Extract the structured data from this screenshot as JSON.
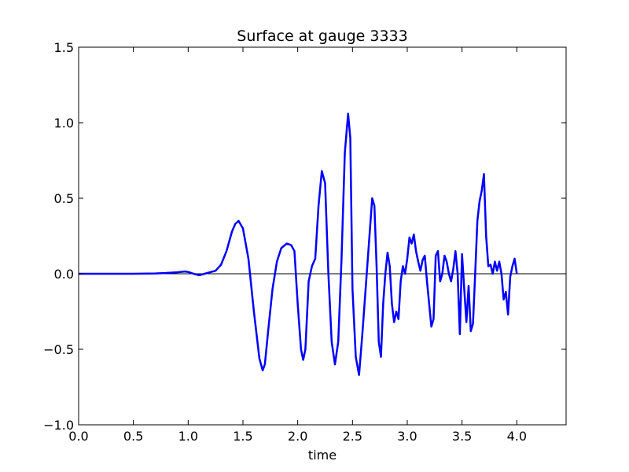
{
  "chart_data": {
    "type": "line",
    "title": "Surface at gauge 3333",
    "xlabel": "time",
    "ylabel": "",
    "xlim": [
      0.0,
      4.45
    ],
    "ylim": [
      -1.0,
      1.5
    ],
    "xticks": [
      "0.0",
      "0.5",
      "1.0",
      "1.5",
      "2.0",
      "2.5",
      "3.0",
      "3.5",
      "4.0"
    ],
    "yticks": [
      "−1.0",
      "−0.5",
      "0.0",
      "0.5",
      "1.0",
      "1.5"
    ],
    "reference_line_y": 0.0,
    "grid": false,
    "legend": "none",
    "line_color": "#0000ff",
    "reference_line_color": "#000000",
    "series": [
      {
        "x": [
          0.0,
          0.5,
          0.7,
          0.8,
          0.9,
          0.97,
          1.0,
          1.05,
          1.1,
          1.15,
          1.2,
          1.25,
          1.3,
          1.35,
          1.4,
          1.43,
          1.46,
          1.5,
          1.55,
          1.6,
          1.65,
          1.68,
          1.7,
          1.73,
          1.77,
          1.81,
          1.85,
          1.9,
          1.94,
          1.97,
          2.0,
          2.03,
          2.05,
          2.07,
          2.1,
          2.13,
          2.16,
          2.19,
          2.22,
          2.25,
          2.28,
          2.31,
          2.34,
          2.37,
          2.4,
          2.43,
          2.46,
          2.48,
          2.5,
          2.53,
          2.56,
          2.59,
          2.62,
          2.65,
          2.68,
          2.7,
          2.72,
          2.74,
          2.76,
          2.78,
          2.8,
          2.82,
          2.84,
          2.86,
          2.88,
          2.9,
          2.92,
          2.94,
          2.96,
          2.98,
          3.0,
          3.02,
          3.04,
          3.06,
          3.08,
          3.1,
          3.12,
          3.14,
          3.16,
          3.18,
          3.2,
          3.22,
          3.24,
          3.26,
          3.28,
          3.3,
          3.32,
          3.34,
          3.36,
          3.38,
          3.4,
          3.42,
          3.44,
          3.46,
          3.48,
          3.5,
          3.52,
          3.54,
          3.56,
          3.58,
          3.6,
          3.62,
          3.64,
          3.66,
          3.68,
          3.7,
          3.72,
          3.74,
          3.76,
          3.78,
          3.8,
          3.82,
          3.84,
          3.86,
          3.88,
          3.9,
          3.92,
          3.94,
          3.96,
          3.98,
          4.0
        ],
        "y": [
          0.0,
          0.0,
          0.002,
          0.005,
          0.01,
          0.015,
          0.012,
          0.0,
          -0.01,
          0.0,
          0.01,
          0.02,
          0.06,
          0.15,
          0.28,
          0.33,
          0.35,
          0.3,
          0.1,
          -0.25,
          -0.56,
          -0.64,
          -0.6,
          -0.38,
          -0.1,
          0.08,
          0.17,
          0.2,
          0.19,
          0.15,
          -0.2,
          -0.5,
          -0.57,
          -0.5,
          -0.05,
          0.05,
          0.1,
          0.45,
          0.68,
          0.6,
          0.0,
          -0.45,
          -0.6,
          -0.45,
          0.1,
          0.8,
          1.06,
          0.9,
          -0.1,
          -0.55,
          -0.67,
          -0.4,
          -0.1,
          0.2,
          0.5,
          0.45,
          0.05,
          -0.45,
          -0.55,
          -0.2,
          0.0,
          0.14,
          0.05,
          -0.2,
          -0.32,
          -0.25,
          -0.3,
          -0.05,
          0.05,
          0.0,
          0.1,
          0.24,
          0.2,
          0.26,
          0.15,
          0.08,
          0.02,
          0.09,
          0.12,
          -0.05,
          -0.2,
          -0.35,
          -0.3,
          0.12,
          0.15,
          -0.05,
          0.0,
          0.12,
          0.08,
          0.0,
          -0.05,
          0.03,
          0.15,
          0.0,
          -0.4,
          0.13,
          -0.1,
          -0.32,
          -0.08,
          -0.38,
          -0.33,
          0.0,
          0.35,
          0.48,
          0.55,
          0.66,
          0.25,
          0.05,
          0.06,
          0.0,
          0.08,
          0.02,
          0.08,
          0.0,
          -0.17,
          -0.12,
          -0.27,
          -0.02,
          0.05,
          0.1,
          0.0
        ]
      }
    ]
  }
}
